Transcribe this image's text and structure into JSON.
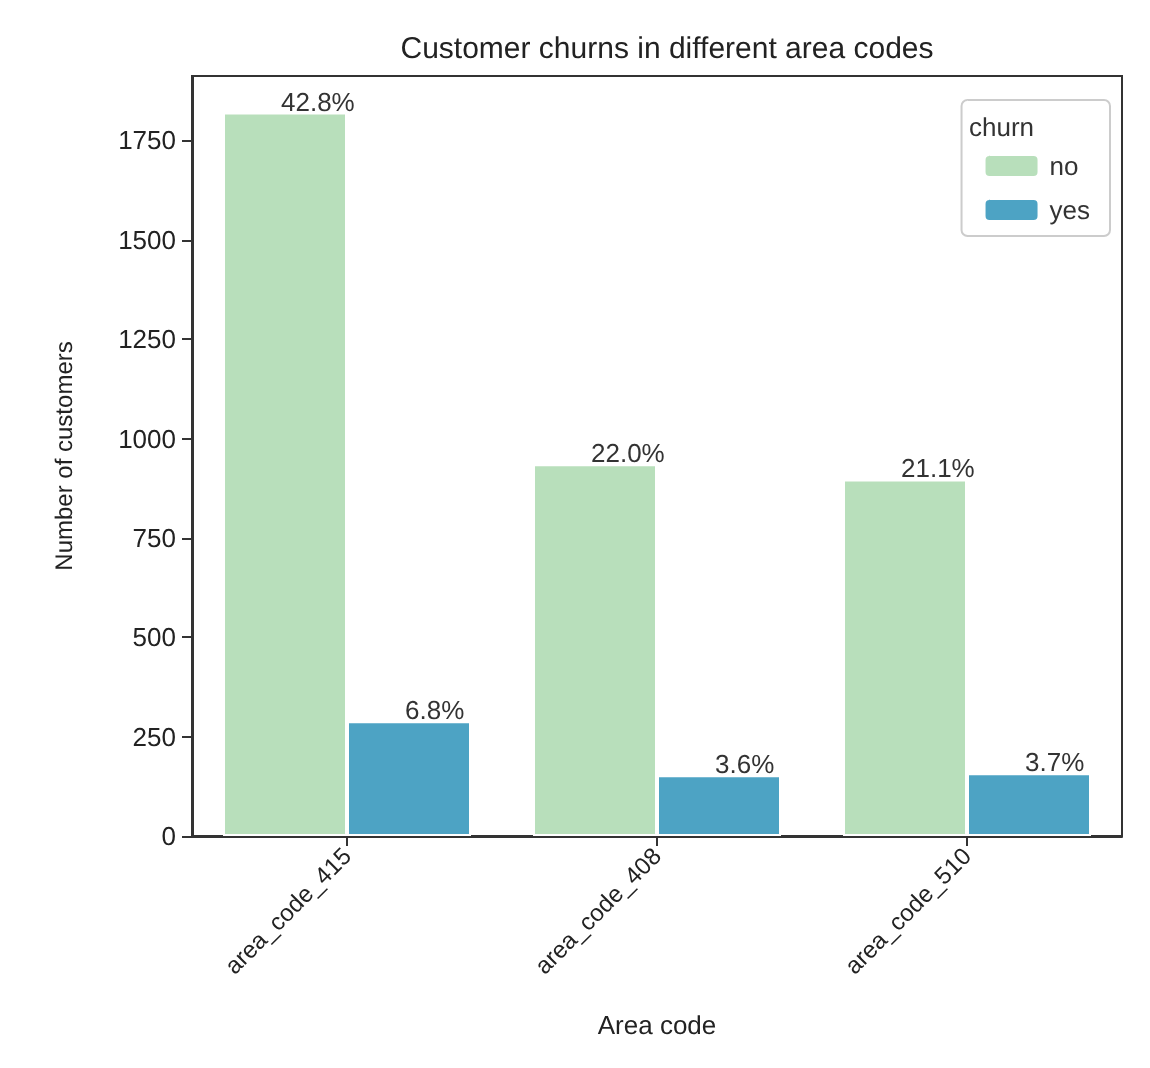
{
  "chart_data": {
    "type": "bar",
    "title": "Customer churns in different area codes",
    "xlabel": "Area code",
    "ylabel": "Number of customers",
    "legend_title": "churn",
    "categories": [
      "area_code_415",
      "area_code_408",
      "area_code_510"
    ],
    "series": [
      {
        "name": "no",
        "color": "#b8dfbb",
        "values": [
          1820,
          935,
          897
        ]
      },
      {
        "name": "yes",
        "color": "#4da3c4",
        "values": [
          289,
          153,
          158
        ]
      }
    ],
    "annotations": [
      {
        "text": "42.8%",
        "x": "area_code_415",
        "y": 1820
      },
      {
        "text": "6.8%",
        "x": "area_code_415",
        "y": 289
      },
      {
        "text": "22.0%",
        "x": "area_code_408",
        "y": 935
      },
      {
        "text": "3.6%",
        "x": "area_code_408",
        "y": 153
      },
      {
        "text": "21.1%",
        "x": "area_code_510",
        "y": 897
      },
      {
        "text": "3.7%",
        "x": "area_code_510",
        "y": 158
      }
    ],
    "ylim": [
      0,
      1912
    ],
    "yticks": [
      0,
      250,
      500,
      750,
      1000,
      1250,
      1500,
      1750
    ],
    "grid": false,
    "legend": "top right"
  }
}
